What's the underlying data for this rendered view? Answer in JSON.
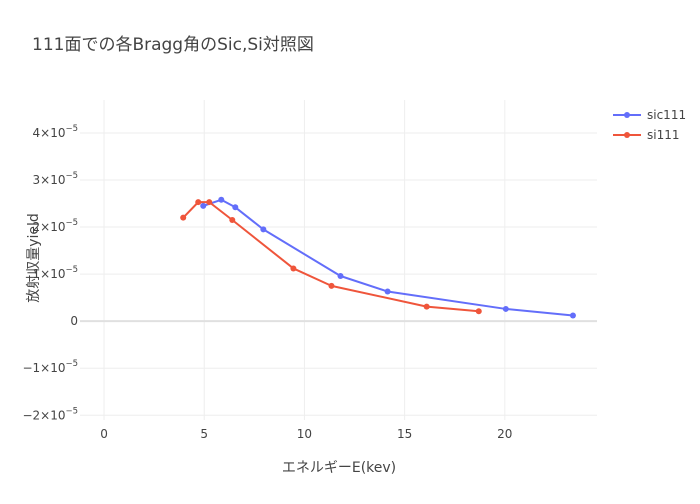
{
  "chart_data": {
    "type": "line",
    "title": "111面での各Bragg角のSic,Si対照図",
    "xlabel": "エネルギーE(kev)",
    "ylabel": "放射収量yield",
    "xlim": [
      -1.2,
      24.6
    ],
    "ylim": [
      -2.1e-05,
      4.7e-05
    ],
    "x_ticks": [
      0,
      5,
      10,
      15,
      20
    ],
    "x_tick_labels": [
      "0",
      "5",
      "10",
      "15",
      "20"
    ],
    "y_ticks": [
      -2e-05,
      -1e-05,
      0,
      1e-05,
      2e-05,
      3e-05,
      4e-05
    ],
    "y_tick_labels": [
      {
        "mantissa": "−2×10",
        "exp": "−5"
      },
      {
        "mantissa": "−1×10",
        "exp": "−5"
      },
      {
        "mantissa": "0",
        "exp": ""
      },
      {
        "mantissa": "1×10",
        "exp": "−5"
      },
      {
        "mantissa": "2×10",
        "exp": "−5"
      },
      {
        "mantissa": "3×10",
        "exp": "−5"
      },
      {
        "mantissa": "4×10",
        "exp": "−5"
      }
    ],
    "grid": true,
    "legend_position": "top-right",
    "series": [
      {
        "name": "sic111",
        "color": "#636efa",
        "x": [
          4.95,
          5.85,
          6.55,
          7.95,
          11.8,
          14.15,
          20.05,
          23.4
        ],
        "y": [
          2.45e-05,
          2.58e-05,
          2.42e-05,
          1.95e-05,
          9.6e-06,
          6.3e-06,
          2.6e-06,
          1.2e-06
        ]
      },
      {
        "name": "si111",
        "color": "#ef553b",
        "x": [
          3.95,
          4.7,
          5.25,
          6.4,
          9.45,
          11.35,
          16.1,
          18.7
        ],
        "y": [
          2.2e-05,
          2.53e-05,
          2.53e-05,
          2.15e-05,
          1.12e-05,
          7.5e-06,
          3.1e-06,
          2.1e-06
        ]
      }
    ]
  }
}
